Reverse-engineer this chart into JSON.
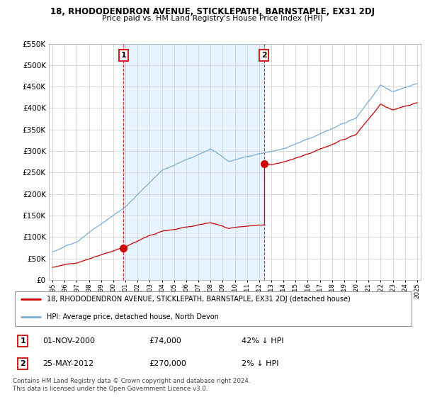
{
  "title": "18, RHODODENDRON AVENUE, STICKLEPATH, BARNSTAPLE, EX31 2DJ",
  "subtitle": "Price paid vs. HM Land Registry's House Price Index (HPI)",
  "legend_line1": "18, RHODODENDRON AVENUE, STICKLEPATH, BARNSTAPLE, EX31 2DJ (detached house)",
  "legend_line2": "HPI: Average price, detached house, North Devon",
  "footer": "Contains HM Land Registry data © Crown copyright and database right 2024.\nThis data is licensed under the Open Government Licence v3.0.",
  "marker1_date": "01-NOV-2000",
  "marker1_price": 74000,
  "marker1_label": "42% ↓ HPI",
  "marker2_date": "25-MAY-2012",
  "marker2_price": 270000,
  "marker2_label": "2% ↓ HPI",
  "sale1_year": 2000.83,
  "sale1_value": 74000,
  "sale2_year": 2012.39,
  "sale2_value": 270000,
  "red_color": "#cc0000",
  "blue_color": "#7aadd4",
  "shade_color": "#ddeeff",
  "marker_box_color": "#cc2222",
  "ylim": [
    0,
    550000
  ],
  "ytick_step": 50000,
  "background_color": "#ffffff",
  "grid_color": "#cccccc",
  "xlim_start": 1994.7,
  "xlim_end": 2025.3
}
